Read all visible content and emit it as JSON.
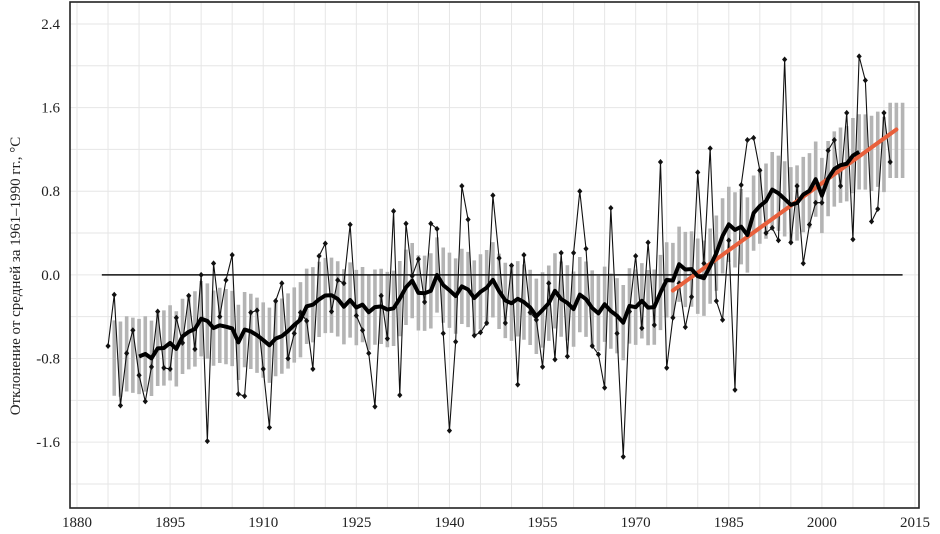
{
  "chart_data": {
    "type": "line",
    "title": "",
    "xlabel": "",
    "ylabel": "Отклонение от средней за 1961–1990 гг., °C",
    "xlim": [
      1880,
      2015
    ],
    "ylim": [
      -2.23,
      2.61
    ],
    "x_ticks": [
      "1880",
      "1895",
      "1910",
      "1925",
      "1940",
      "1955",
      "1970",
      "1985",
      "2000",
      "2015"
    ],
    "y_ticks": [
      "2.4",
      "1.6",
      "0.8",
      "0.0",
      "-0.8",
      "-1.6"
    ],
    "grid": true,
    "start_year": 1885,
    "values": [
      -0.68,
      -0.19,
      -1.25,
      -0.75,
      -0.53,
      -0.96,
      -1.21,
      -0.88,
      -0.35,
      -0.89,
      -0.9,
      -0.41,
      -0.65,
      -0.2,
      -0.71,
      0.0,
      -1.59,
      0.11,
      -0.4,
      -0.05,
      0.19,
      -1.14,
      -1.16,
      -0.36,
      -0.34,
      -0.9,
      -1.46,
      -0.25,
      -0.08,
      -0.8,
      -0.56,
      -0.36,
      -0.44,
      -0.9,
      0.18,
      0.3,
      -0.35,
      -0.05,
      -0.08,
      0.48,
      -0.39,
      -0.53,
      -0.75,
      -1.26,
      -0.2,
      -0.61,
      0.61,
      -1.15,
      0.49,
      -0.01,
      0.15,
      -0.26,
      0.49,
      0.44,
      -0.56,
      -1.49,
      -0.64,
      0.85,
      0.53,
      -0.58,
      -0.55,
      -0.46,
      0.76,
      0.16,
      -0.46,
      0.09,
      -1.05,
      0.19,
      -0.36,
      -0.43,
      -0.88,
      -0.08,
      -0.81,
      0.21,
      -0.78,
      0.21,
      0.8,
      0.25,
      -0.68,
      -0.76,
      -1.08,
      0.64,
      -0.56,
      -1.74,
      -0.35,
      0.18,
      -0.51,
      0.31,
      -0.48,
      1.08,
      -0.89,
      -0.41,
      -0.08,
      -0.5,
      -0.21,
      0.98,
      0.11,
      1.21,
      -0.25,
      -0.43,
      0.33,
      -1.1,
      0.86,
      1.29,
      1.31,
      1.0,
      0.4,
      0.45,
      0.33,
      2.06,
      0.31,
      0.85,
      0.11,
      0.48,
      0.69,
      0.69,
      1.19,
      1.29,
      0.85,
      1.55,
      0.34,
      2.09,
      1.86,
      0.51,
      0.63,
      1.55,
      1.08
    ],
    "smoothing_window_years": 11,
    "uncertainty_halfwidth": 0.36,
    "reference_line": {
      "y": 0,
      "x_range": [
        1884,
        2013
      ]
    },
    "trend_line": {
      "from": [
        1976,
        -0.15
      ],
      "to": [
        2012,
        1.39
      ],
      "color": "#e8603c"
    },
    "colors": {
      "series": "#111111",
      "smooth": "#000000",
      "band": "#b4b4b4",
      "grid": "#e6e6e6"
    }
  }
}
